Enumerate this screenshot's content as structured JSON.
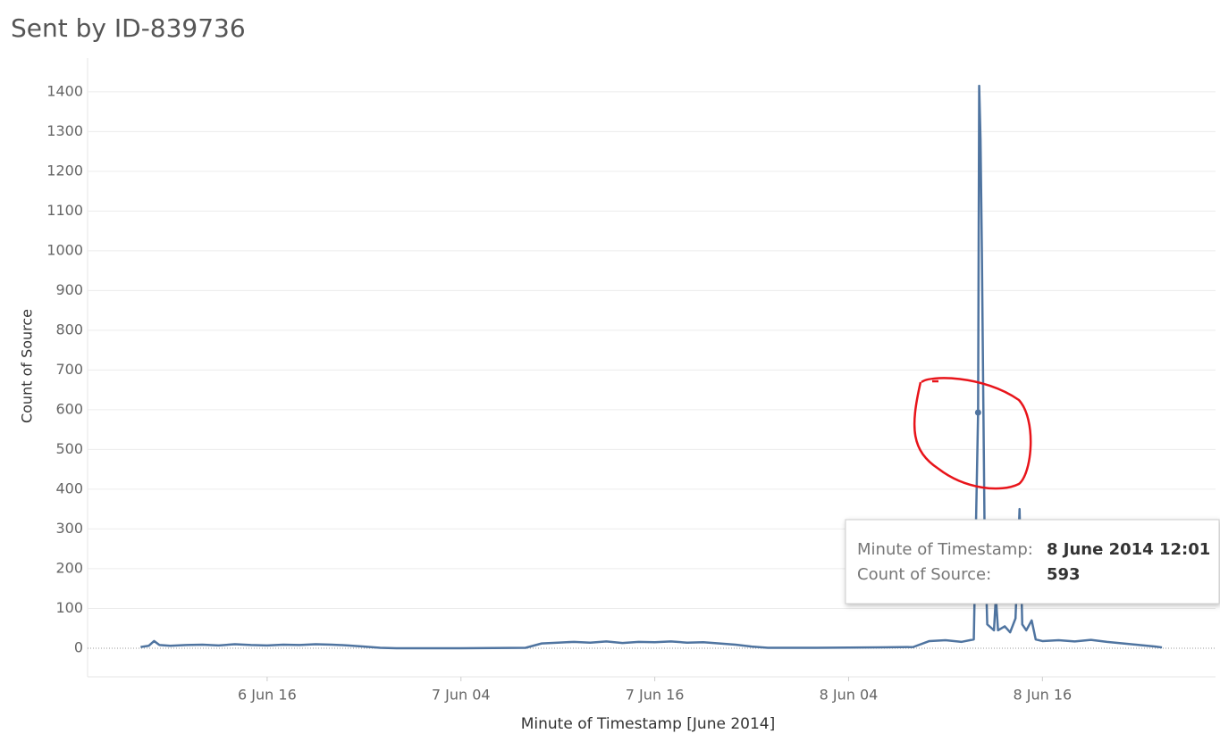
{
  "chart_data": {
    "type": "line",
    "title": "Sent by ID-839736",
    "x_label": "Minute of Timestamp [June 2014]",
    "y_label": "Count of Source",
    "x": [
      "2014-06-06T08:10",
      "2014-06-06T08:40",
      "2014-06-06T09:00",
      "2014-06-06T09:20",
      "2014-06-06T10:00",
      "2014-06-06T11:00",
      "2014-06-06T12:00",
      "2014-06-06T13:00",
      "2014-06-06T14:00",
      "2014-06-06T15:00",
      "2014-06-06T16:00",
      "2014-06-06T17:00",
      "2014-06-06T18:00",
      "2014-06-06T19:00",
      "2014-06-06T20:00",
      "2014-06-06T21:00",
      "2014-06-06T22:00",
      "2014-06-06T23:00",
      "2014-06-07T00:00",
      "2014-06-07T04:00",
      "2014-06-07T08:00",
      "2014-06-07T09:00",
      "2014-06-07T10:00",
      "2014-06-07T11:00",
      "2014-06-07T12:00",
      "2014-06-07T13:00",
      "2014-06-07T14:00",
      "2014-06-07T15:00",
      "2014-06-07T16:00",
      "2014-06-07T17:00",
      "2014-06-07T18:00",
      "2014-06-07T19:00",
      "2014-06-07T20:00",
      "2014-06-07T21:00",
      "2014-06-07T22:00",
      "2014-06-07T23:00",
      "2014-06-08T02:00",
      "2014-06-08T06:00",
      "2014-06-08T08:00",
      "2014-06-08T09:00",
      "2014-06-08T10:00",
      "2014-06-08T11:00",
      "2014-06-08T11:45",
      "2014-06-08T12:01",
      "2014-06-08T12:05",
      "2014-06-08T12:10",
      "2014-06-08T12:15",
      "2014-06-08T12:25",
      "2014-06-08T12:35",
      "2014-06-08T13:00",
      "2014-06-08T13:07",
      "2014-06-08T13:15",
      "2014-06-08T13:40",
      "2014-06-08T14:00",
      "2014-06-08T14:20",
      "2014-06-08T14:35",
      "2014-06-08T14:45",
      "2014-06-08T15:00",
      "2014-06-08T15:20",
      "2014-06-08T15:35",
      "2014-06-08T16:00",
      "2014-06-08T17:00",
      "2014-06-08T18:00",
      "2014-06-08T19:00",
      "2014-06-08T20:00",
      "2014-06-08T21:00",
      "2014-06-08T22:00",
      "2014-06-08T23:00",
      "2014-06-08T23:24"
    ],
    "series": [
      {
        "name": "Count of Source",
        "color": "#4f74a0",
        "values": [
          3,
          6,
          18,
          8,
          6,
          8,
          9,
          7,
          10,
          8,
          7,
          9,
          8,
          10,
          9,
          7,
          4,
          1,
          0,
          0,
          1,
          12,
          14,
          16,
          14,
          17,
          13,
          16,
          15,
          17,
          14,
          15,
          12,
          9,
          4,
          1,
          1,
          2,
          3,
          18,
          20,
          16,
          22,
          593,
          1415,
          1280,
          1000,
          300,
          60,
          45,
          130,
          45,
          55,
          40,
          75,
          350,
          60,
          45,
          70,
          22,
          18,
          20,
          17,
          21,
          16,
          12,
          8,
          4,
          2
        ]
      }
    ],
    "xlim": [
      "2014-06-06T04:53",
      "2014-06-09T02:43"
    ],
    "xticks": [
      {
        "value": "2014-06-06T16:00",
        "label": "6 Jun 16"
      },
      {
        "value": "2014-06-07T04:00",
        "label": "7 Jun 04"
      },
      {
        "value": "2014-06-07T16:00",
        "label": "7 Jun 16"
      },
      {
        "value": "2014-06-08T04:00",
        "label": "8 Jun 04"
      },
      {
        "value": "2014-06-08T16:00",
        "label": "8 Jun 16"
      }
    ],
    "ylim": [
      -72,
      1485
    ],
    "yticks": [
      0,
      100,
      200,
      300,
      400,
      500,
      600,
      700,
      800,
      900,
      1000,
      1100,
      1200,
      1300,
      1400
    ],
    "grid": true,
    "tooltip": {
      "rows": [
        {
          "label": "Minute of Timestamp:",
          "value": "8 June 2014 12:01"
        },
        {
          "label": "Count of Source:",
          "value": "593"
        }
      ]
    }
  }
}
